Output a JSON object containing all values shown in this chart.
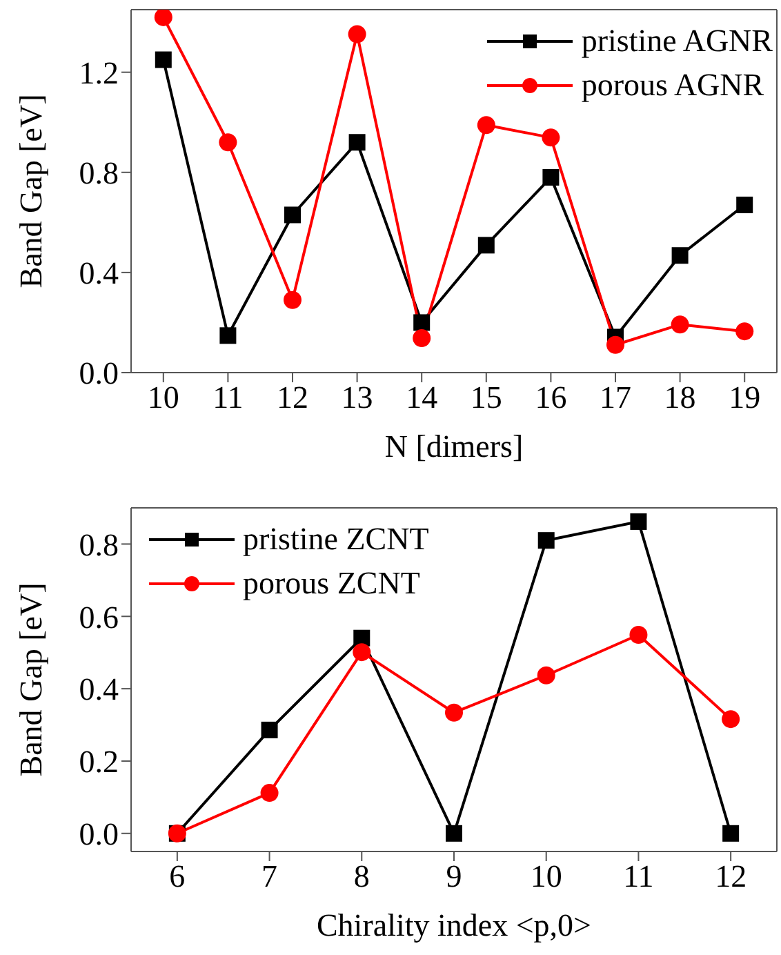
{
  "chart_data": [
    {
      "type": "line",
      "xlabel": "N [dimers]",
      "ylabel": "Band Gap [eV]",
      "x": [
        10,
        11,
        12,
        13,
        14,
        15,
        16,
        17,
        18,
        19
      ],
      "xlim": [
        9.5,
        19.5
      ],
      "xticks": [
        10,
        11,
        12,
        13,
        14,
        15,
        16,
        17,
        18,
        19
      ],
      "ylim": [
        0,
        1.45
      ],
      "yticks": [
        {
          "value": 0,
          "label": "0.0"
        },
        0.4,
        0.8,
        1.2
      ],
      "legend": "top right",
      "grid": false,
      "series": [
        {
          "name": "pristine AGNR",
          "color": "#000000",
          "marker": "square",
          "values": [
            1.25,
            0.148,
            0.63,
            0.92,
            0.2,
            0.509,
            0.78,
            0.142,
            0.468,
            0.67
          ]
        },
        {
          "name": "porous AGNR",
          "color": "#ff0000",
          "marker": "circle",
          "values": [
            1.42,
            0.92,
            0.29,
            1.352,
            0.138,
            0.989,
            0.939,
            0.111,
            0.192,
            0.165
          ]
        }
      ]
    },
    {
      "type": "line",
      "xlabel": "Chirality index <p,0>",
      "ylabel": "Band Gap [eV]",
      "x": [
        6,
        7,
        8,
        9,
        10,
        11,
        12
      ],
      "xlim": [
        5.5,
        12.5
      ],
      "xticks": [
        6,
        7,
        8,
        9,
        10,
        11,
        12
      ],
      "ylim": [
        -0.05,
        0.9
      ],
      "yticks": [
        {
          "value": 0,
          "label": "0.0"
        },
        0.2,
        0.4,
        0.6,
        0.8
      ],
      "legend": "top left",
      "grid": false,
      "series": [
        {
          "name": "pristine ZCNT",
          "color": "#000000",
          "marker": "square",
          "values": [
            0,
            0.286,
            0.54,
            0,
            0.81,
            0.862,
            0
          ]
        },
        {
          "name": "porous ZCNT",
          "color": "#ff0000",
          "marker": "circle",
          "values": [
            0,
            0.112,
            0.501,
            0.334,
            0.437,
            0.549,
            0.316
          ]
        }
      ]
    }
  ]
}
